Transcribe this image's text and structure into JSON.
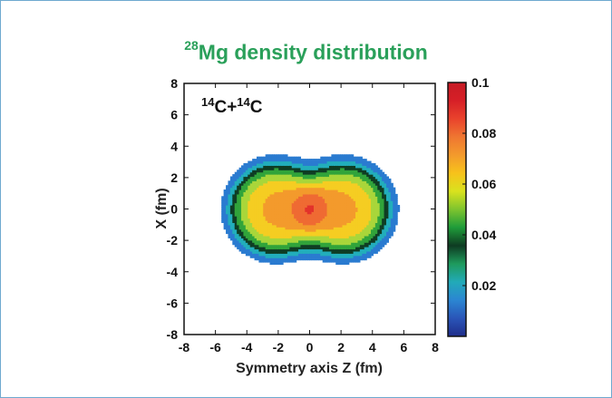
{
  "chart_data": {
    "type": "heatmap",
    "title": {
      "sup": "28",
      "main": "Mg density distribution"
    },
    "xlabel": "Symmetry axis Z (fm)",
    "ylabel": "X (fm)",
    "xlim": [
      -8,
      8
    ],
    "ylim": [
      -8,
      8
    ],
    "xticks": [
      -8,
      -6,
      -4,
      -2,
      0,
      2,
      4,
      6,
      8
    ],
    "yticks": [
      -8,
      -6,
      -4,
      -2,
      0,
      2,
      4,
      6,
      8
    ],
    "annotation": {
      "a": "14",
      "b": "C+",
      "c": "14",
      "d": "C"
    },
    "colorbar": {
      "range": [
        0,
        0.1
      ],
      "ticks": [
        0.02,
        0.04,
        0.06,
        0.08,
        0.1
      ],
      "ticklabels": [
        "0.02",
        "0.04",
        "0.06",
        "0.08",
        "0.1"
      ],
      "colors": [
        "#1f2d8a",
        "#2a55b8",
        "#2b86d2",
        "#22aab8",
        "#1e9a5c",
        "#0e3b22",
        "#1f9c3a",
        "#7ec42e",
        "#d9e21e",
        "#f7c21b",
        "#f39a2c",
        "#ef7631",
        "#e9432c",
        "#d61f27",
        "#c71b25"
      ]
    },
    "levels": [
      0.01,
      0.017,
      0.024,
      0.031,
      0.04,
      0.05,
      0.06,
      0.07,
      0.08,
      0.09
    ],
    "level_colors": [
      "#2040a8",
      "#2a7bd0",
      "#22aebb",
      "#0f3d24",
      "#31a43b",
      "#a9d63a",
      "#f5cd22",
      "#f39a2c",
      "#ef6a33",
      "#e3322b",
      "#c91c25"
    ],
    "centers": [
      {
        "z": -2.2,
        "x": 0
      },
      {
        "z": 2.2,
        "x": 0
      }
    ]
  }
}
